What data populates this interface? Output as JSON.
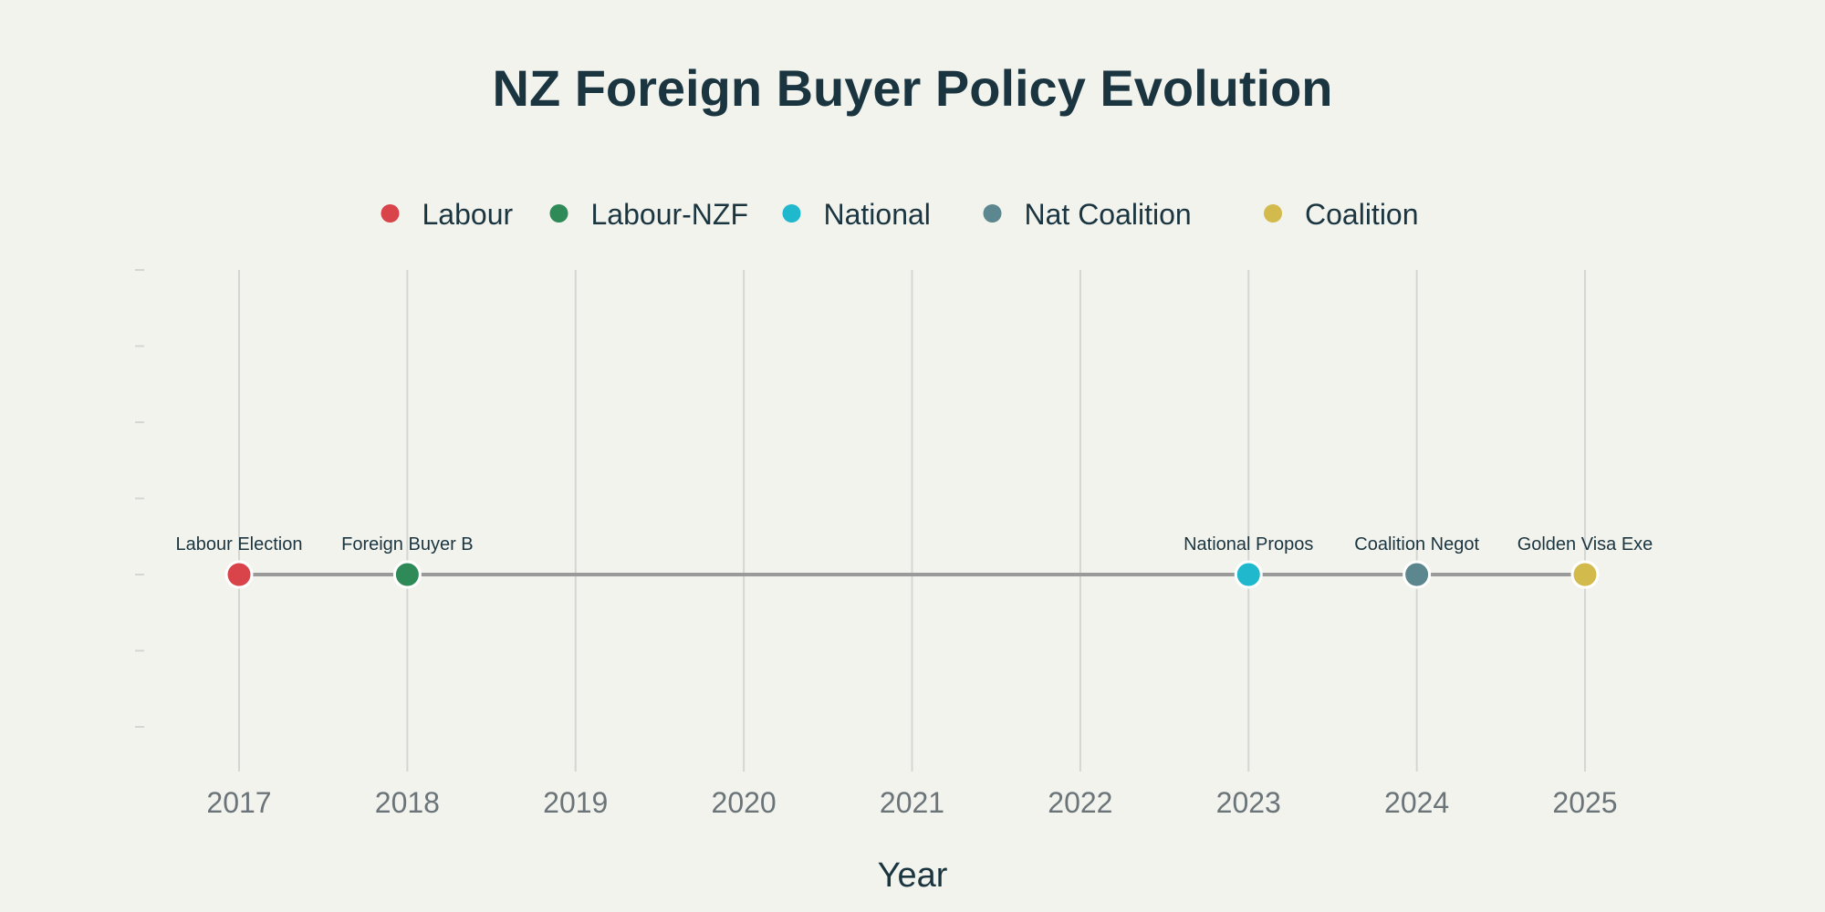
{
  "chart_data": {
    "type": "scatter",
    "title": "NZ Foreign Buyer Policy Evolution",
    "xlabel": "Year",
    "ylabel": "",
    "xlim": [
      2016.4,
      2025.6
    ],
    "x_ticks": [
      2017,
      2018,
      2019,
      2020,
      2021,
      2022,
      2023,
      2024,
      2025
    ],
    "grid": true,
    "legend_position": "top",
    "series": [
      {
        "name": "Labour",
        "color": "#d9434a",
        "points": [
          {
            "x": 2017,
            "y": 0,
            "label": "Labour Election"
          }
        ]
      },
      {
        "name": "Labour-NZF",
        "color": "#2e8b57",
        "points": [
          {
            "x": 2018,
            "y": 0,
            "label": "Foreign Buyer B"
          }
        ]
      },
      {
        "name": "National",
        "color": "#1fb8cd",
        "points": [
          {
            "x": 2023,
            "y": 0,
            "label": "National Propos"
          }
        ]
      },
      {
        "name": "Nat Coalition",
        "color": "#5d878f",
        "points": [
          {
            "x": 2024,
            "y": 0,
            "label": "Coalition Negot"
          }
        ]
      },
      {
        "name": "Coalition",
        "color": "#d2ba4c",
        "points": [
          {
            "x": 2025,
            "y": 0,
            "label": "Golden Visa Exe"
          }
        ]
      }
    ],
    "connector_color": "#9a9a9a",
    "grid_color": "#d4d6d3"
  }
}
